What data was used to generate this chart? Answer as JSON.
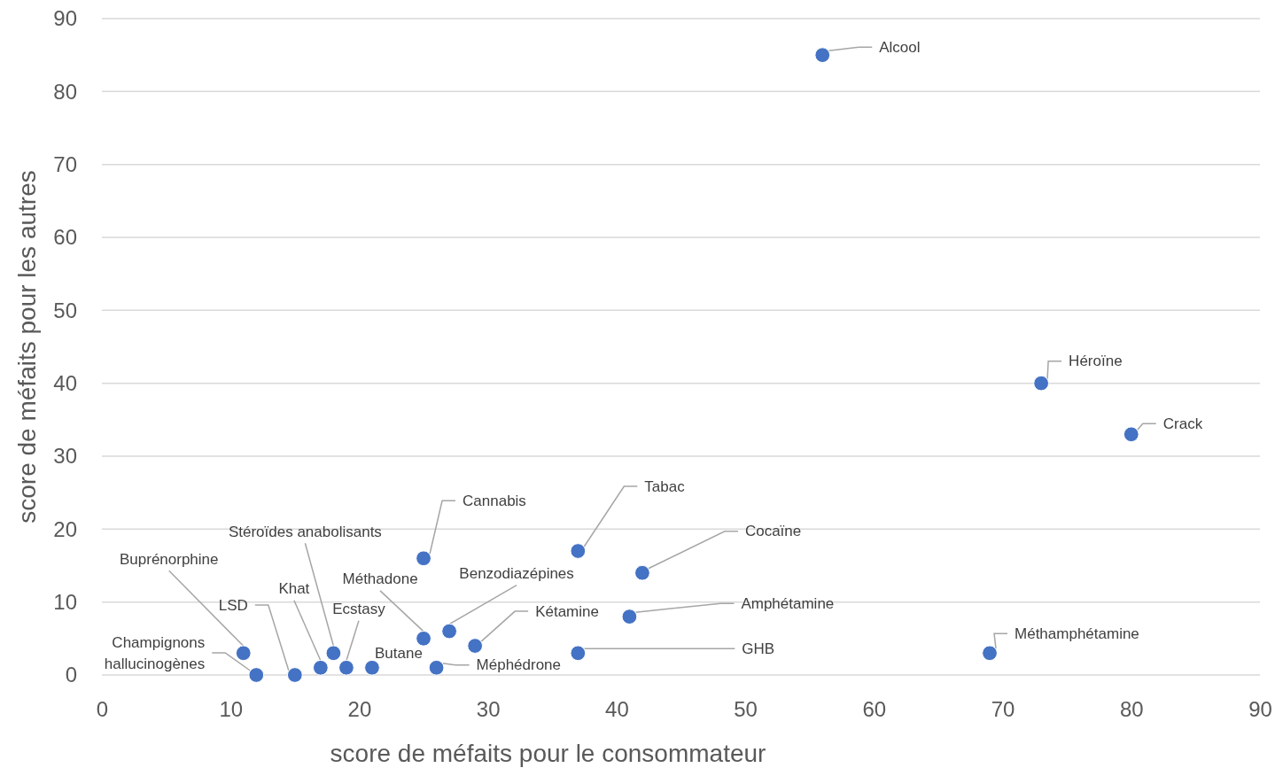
{
  "chart_data": {
    "type": "scatter",
    "xlabel": "score de méfaits pour le consommateur",
    "ylabel": "score de méfaits pour les autres",
    "x": [
      56,
      73,
      80,
      69,
      37,
      42,
      41,
      37,
      25,
      29,
      27,
      25,
      26,
      21,
      19,
      18,
      17,
      15,
      12,
      11
    ],
    "values": [
      85,
      40,
      33,
      3,
      17,
      14,
      8,
      3,
      16,
      4,
      6,
      5,
      1,
      1,
      1,
      3,
      1,
      0,
      0,
      3
    ],
    "color": "#4472c4",
    "marker": "circle",
    "grid": "y",
    "xlim": [
      0,
      90
    ],
    "xticks": [
      0,
      10,
      20,
      30,
      40,
      50,
      60,
      70,
      80,
      90
    ],
    "ylim": [
      0,
      90
    ],
    "yticks": [
      0,
      10,
      20,
      30,
      40,
      50,
      60,
      70,
      80,
      90
    ],
    "annotations": [
      {
        "text": "Alcool",
        "x": 56,
        "y": 85
      },
      {
        "text": "Héroïne",
        "x": 73,
        "y": 40
      },
      {
        "text": "Crack",
        "x": 80,
        "y": 33
      },
      {
        "text": "Méthamphétamine",
        "x": 69,
        "y": 3
      },
      {
        "text": "Tabac",
        "x": 37,
        "y": 17
      },
      {
        "text": "Cocaïne",
        "x": 42,
        "y": 14
      },
      {
        "text": "Amphétamine",
        "x": 41,
        "y": 8
      },
      {
        "text": "GHB",
        "x": 37,
        "y": 3
      },
      {
        "text": "Cannabis",
        "x": 25,
        "y": 16
      },
      {
        "text": "Kétamine",
        "x": 29,
        "y": 4
      },
      {
        "text": "Benzodiazépines",
        "x": 27,
        "y": 6
      },
      {
        "text": "Méthadone",
        "x": 25,
        "y": 5
      },
      {
        "text": "Méphédrone",
        "x": 26,
        "y": 1
      },
      {
        "text": "Butane",
        "x": 21,
        "y": 1
      },
      {
        "text": "Ecstasy",
        "x": 19,
        "y": 1
      },
      {
        "text": "Stéroïdes anabolisants",
        "x": 18,
        "y": 3
      },
      {
        "text": "Khat",
        "x": 17,
        "y": 1
      },
      {
        "text": "LSD",
        "x": 15,
        "y": 0
      },
      {
        "text": "Champignons hallucinogènes",
        "x": 12,
        "y": 0
      },
      {
        "text": "Buprénorphine",
        "x": 11,
        "y": 3
      }
    ]
  }
}
